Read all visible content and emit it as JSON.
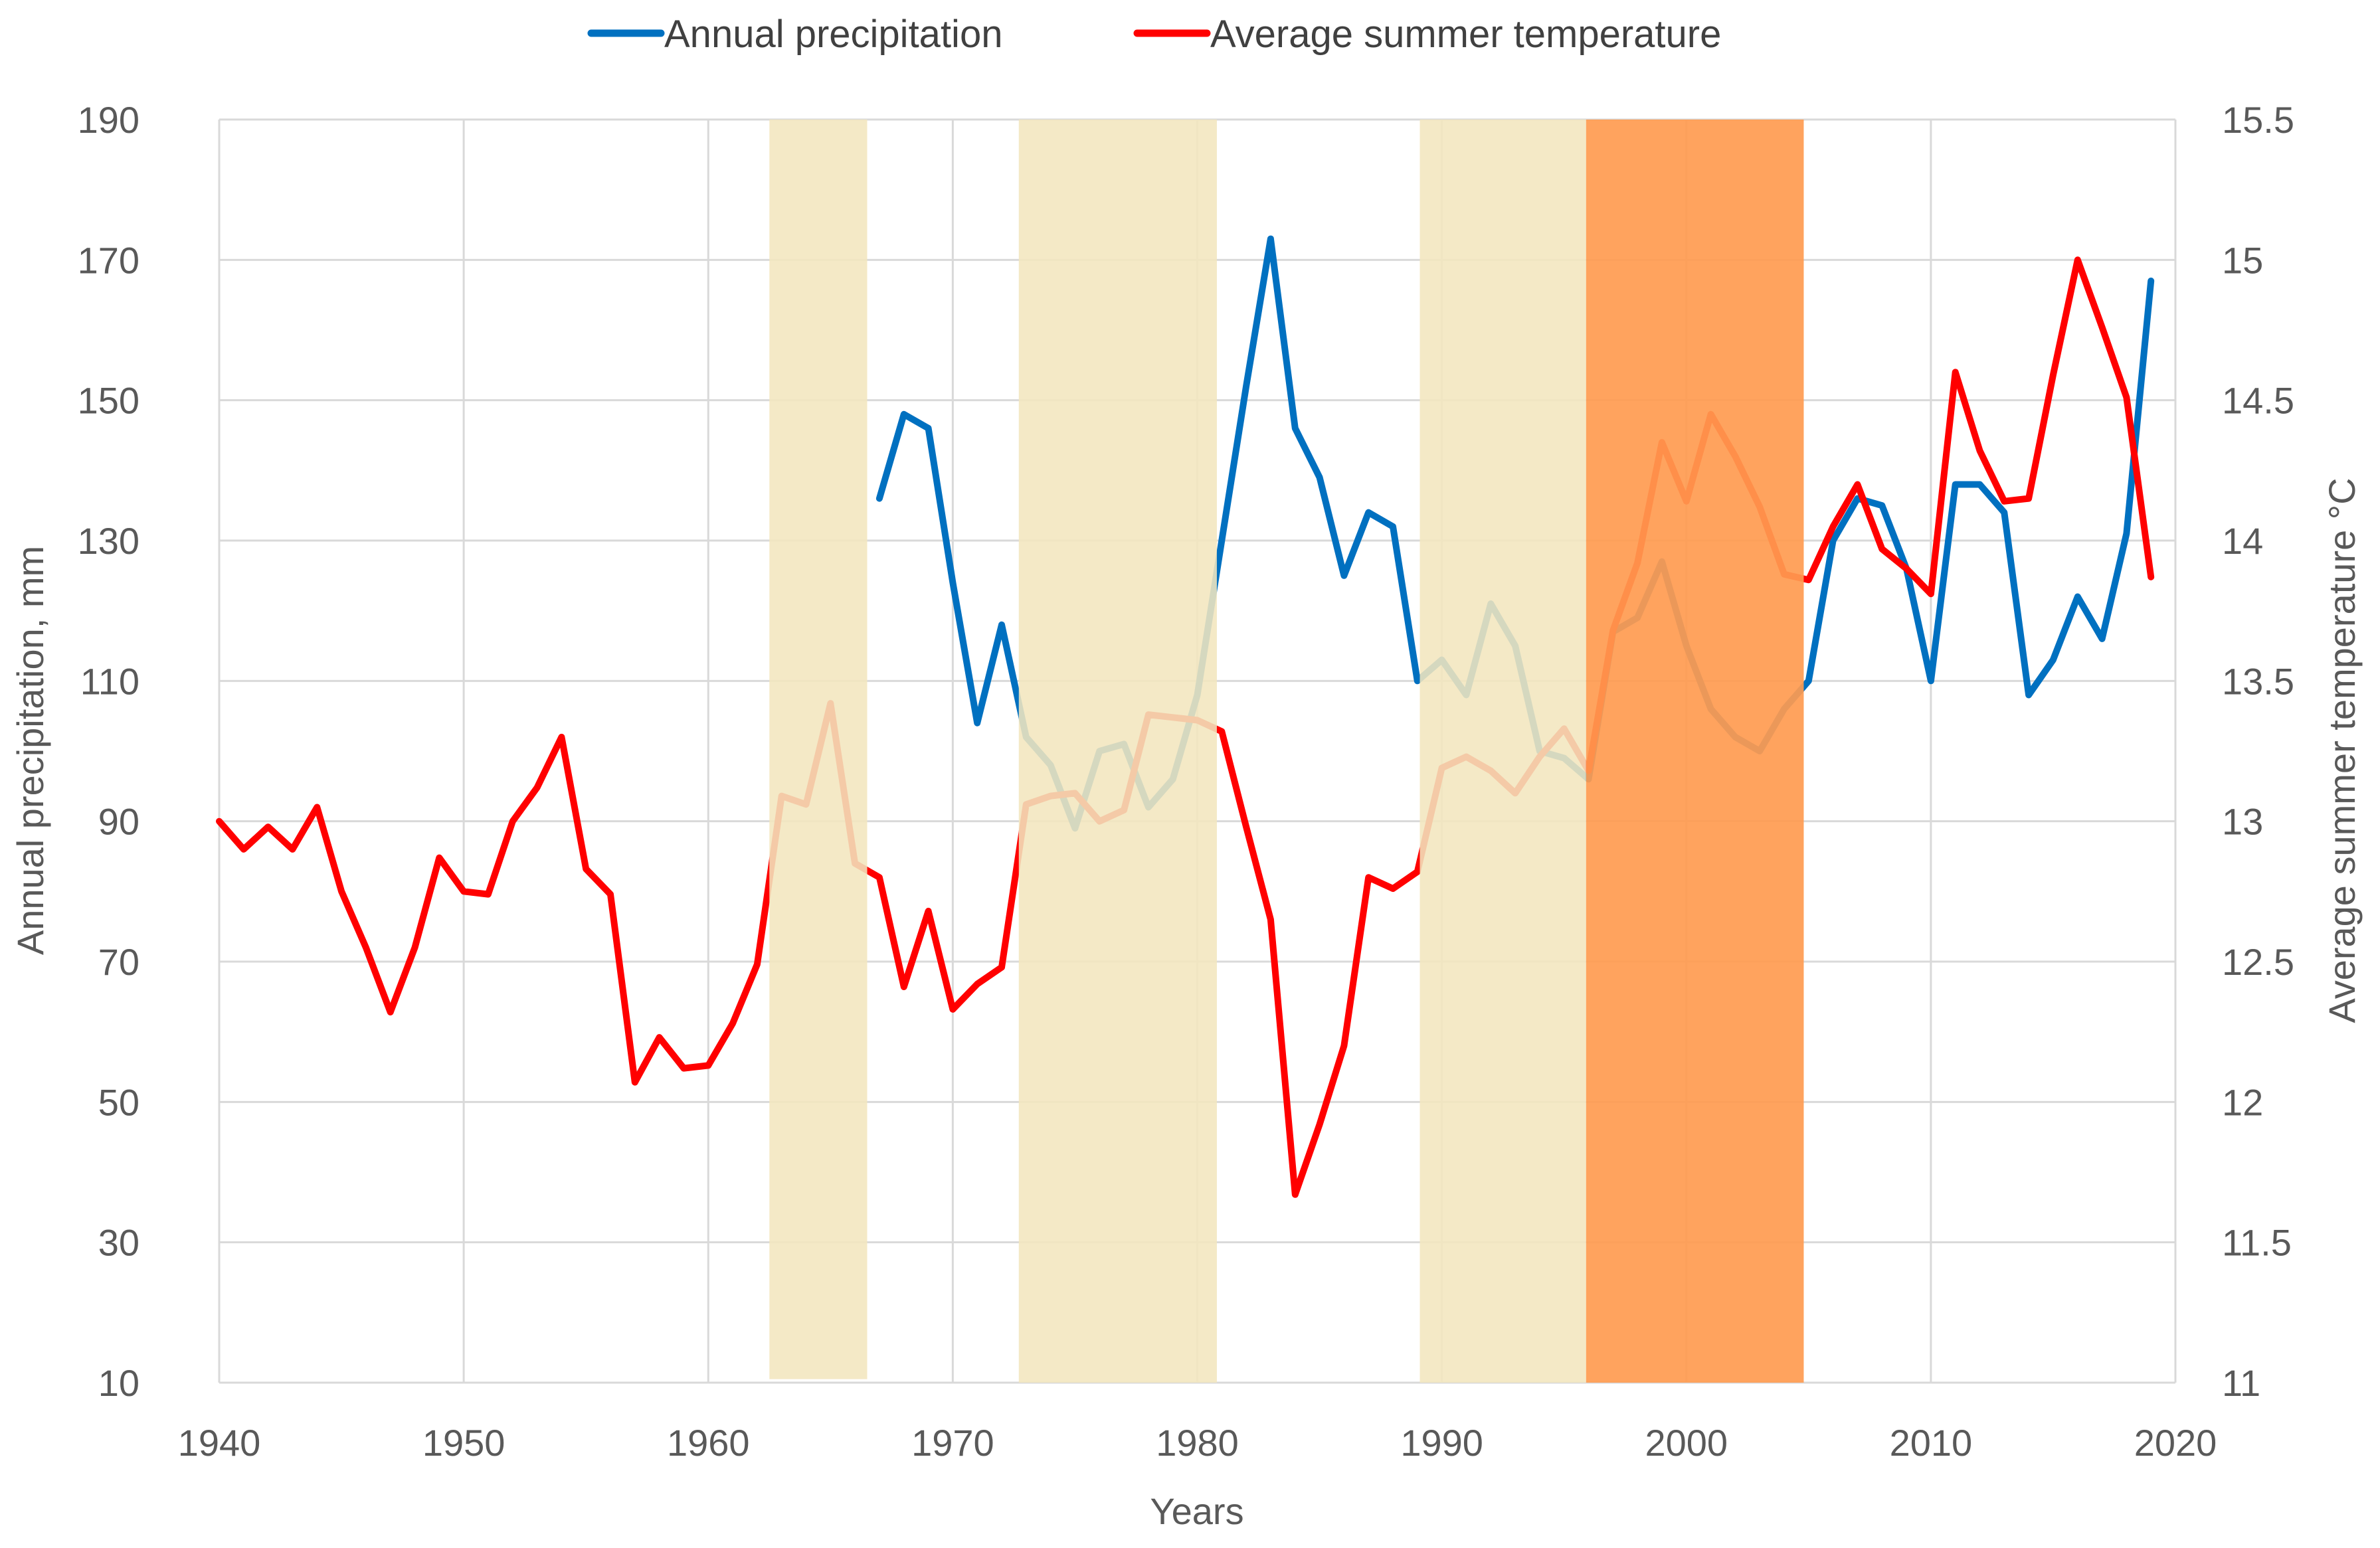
{
  "chart_data": {
    "type": "line",
    "title": "",
    "xlabel": "Years",
    "ylabel": "Annual precipitation, mm",
    "y2label": "Average summer temperature °C",
    "xlim": [
      1940,
      2020
    ],
    "ylim": [
      10,
      190
    ],
    "y2lim": [
      11,
      15.5
    ],
    "x_ticks": [
      "1940",
      "1950",
      "1960",
      "1970",
      "1980",
      "1990",
      "2000",
      "2010",
      "2020"
    ],
    "y_ticks": [
      "10",
      "30",
      "50",
      "70",
      "90",
      "110",
      "130",
      "150",
      "170",
      "190"
    ],
    "y2_ticks": [
      "11",
      "11.5",
      "12",
      "12.5",
      "13",
      "13.5",
      "14",
      "14.5",
      "15",
      "15.5"
    ],
    "legend_position": "top-center",
    "grid": true,
    "colors": {
      "precipitation": "#0070C0",
      "temperature": "#FF0000",
      "drought_band": "#F2E6BE",
      "severe_band": "#FF9B50",
      "grid": "#D9D9D9"
    },
    "shaded_periods": [
      {
        "start": 1962.5,
        "end": 1966.5,
        "kind": "drought",
        "top": 190,
        "bottom": 10.5
      },
      {
        "start": 1972.7,
        "end": 1980.8,
        "kind": "drought",
        "top": 190,
        "bottom": 10
      },
      {
        "start": 1989.1,
        "end": 1995.9,
        "kind": "drought",
        "top": 190,
        "bottom": 10
      },
      {
        "start": 1995.9,
        "end": 2004.8,
        "kind": "severe",
        "top": 190,
        "bottom": 10
      }
    ],
    "series": [
      {
        "name": "Annual precipitation",
        "axis": "left",
        "color": "#0070C0",
        "x": [
          1967,
          1968,
          1969,
          1970,
          1971,
          1972,
          1973,
          1974,
          1975,
          1976,
          1977,
          1978,
          1979,
          1980,
          1981,
          1982,
          1983,
          1984,
          1985,
          1986,
          1987,
          1988,
          1989,
          1990,
          1991,
          1992,
          1993,
          1994,
          1995,
          1996,
          1997,
          1998,
          1999,
          2000,
          2001,
          2002,
          2003,
          2004,
          2005,
          2006,
          2007,
          2008,
          2009,
          2010,
          2011,
          2012,
          2013,
          2014,
          2015,
          2016,
          2017,
          2018,
          2019
        ],
        "values": [
          136,
          148,
          146,
          124,
          104,
          118,
          102,
          98,
          89,
          100,
          101,
          92,
          96,
          108,
          130,
          152,
          173,
          146,
          139,
          125,
          134,
          132,
          110,
          113,
          108,
          121,
          115,
          100,
          99,
          96,
          117,
          119,
          127,
          115,
          106,
          102,
          100,
          106,
          110,
          130,
          136,
          135,
          126,
          110,
          138,
          138,
          134,
          108,
          113,
          122,
          116,
          131,
          167
        ]
      },
      {
        "name": "Average summer temperature",
        "axis": "right",
        "color": "#FF0000",
        "x": [
          1940,
          1941,
          1942,
          1943,
          1944,
          1945,
          1946,
          1947,
          1948,
          1949,
          1950,
          1951,
          1952,
          1953,
          1954,
          1955,
          1956,
          1957,
          1958,
          1959,
          1960,
          1961,
          1962,
          1963,
          1964,
          1965,
          1966,
          1967,
          1968,
          1969,
          1970,
          1971,
          1972,
          1973,
          1974,
          1975,
          1976,
          1977,
          1978,
          1979,
          1980,
          1981,
          1982,
          1983,
          1984,
          1985,
          1986,
          1987,
          1988,
          1989,
          1990,
          1991,
          1992,
          1993,
          1994,
          1995,
          1996,
          1997,
          1998,
          1999,
          2000,
          2001,
          2002,
          2003,
          2004,
          2005,
          2006,
          2007,
          2008,
          2009,
          2010,
          2011,
          2012,
          2013,
          2014,
          2015,
          2016,
          2017,
          2018,
          2019
        ],
        "values": [
          13.0,
          12.9,
          12.98,
          12.9,
          13.05,
          12.75,
          12.55,
          12.32,
          12.55,
          12.87,
          12.75,
          12.74,
          13.0,
          13.12,
          13.3,
          12.83,
          12.74,
          12.07,
          12.23,
          12.12,
          12.13,
          12.28,
          12.49,
          13.09,
          13.06,
          13.42,
          12.85,
          12.8,
          12.41,
          12.68,
          12.33,
          12.42,
          12.48,
          13.06,
          13.09,
          13.1,
          13.0,
          13.04,
          13.38,
          13.37,
          13.36,
          13.32,
          12.98,
          12.65,
          11.67,
          11.92,
          12.2,
          12.8,
          12.76,
          12.82,
          13.19,
          13.23,
          13.18,
          13.1,
          13.23,
          13.33,
          13.18,
          13.68,
          13.92,
          14.35,
          14.14,
          14.45,
          14.3,
          14.12,
          13.88,
          13.86,
          14.05,
          14.2,
          13.97,
          13.9,
          13.81,
          14.6,
          14.32,
          14.14,
          14.15,
          14.59,
          15.0,
          14.76,
          14.51,
          13.87
        ]
      }
    ]
  }
}
